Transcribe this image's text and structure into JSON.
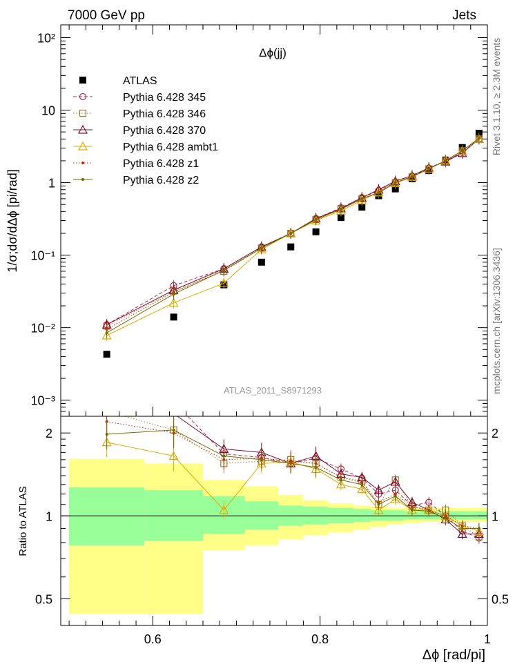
{
  "header": {
    "left": "7000 GeV pp",
    "right": "Jets"
  },
  "side_labels": {
    "rivet": "Rivet 3.1.10, ≥ 2.3M events",
    "mcplots": "mcplots.cern.ch [arXiv:1306.3436]"
  },
  "chart_data": [
    {
      "type": "line",
      "panel": "main",
      "title": "Δϕ(jj)",
      "ylabel": "1/σ;dσ/dΔϕ [pi/rad]",
      "xlabel": "",
      "yscale": "log",
      "xlim": [
        0.49,
        1.0
      ],
      "ylim": [
        0.0006,
        150
      ],
      "ytick_labels": [
        "10⁻³",
        "10⁻²",
        "10⁻¹",
        "1",
        "10",
        "10²"
      ],
      "legend_position": "top-left",
      "watermark": "ATLAS_2011_S8971293",
      "x": [
        0.545,
        0.625,
        0.685,
        0.73,
        0.765,
        0.795,
        0.825,
        0.85,
        0.87,
        0.89,
        0.91,
        0.93,
        0.95,
        0.97,
        0.99
      ],
      "series": [
        {
          "name": "ATLAS",
          "color": "#000000",
          "marker": "square",
          "values": [
            0.0043,
            0.014,
            0.039,
            0.08,
            0.13,
            0.21,
            0.33,
            0.46,
            0.66,
            0.82,
            1.13,
            1.47,
            2.05,
            3.05,
            4.8
          ]
        },
        {
          "name": "Pythia 6.428 345",
          "color": "#b02c4c",
          "marker": "circle-open",
          "line": "dashed",
          "values": [
            0.011,
            0.038,
            0.065,
            0.13,
            0.2,
            0.32,
            0.45,
            0.62,
            0.78,
            1.0,
            1.22,
            1.58,
            2.0,
            2.6,
            4.0
          ]
        },
        {
          "name": "Pythia 6.428 346",
          "color": "#a0782c",
          "marker": "square-open",
          "line": "dotted",
          "values": [
            0.0105,
            0.032,
            0.06,
            0.125,
            0.2,
            0.31,
            0.44,
            0.6,
            0.72,
            1.0,
            1.2,
            1.55,
            2.05,
            2.75,
            4.0
          ]
        },
        {
          "name": "Pythia 6.428 370",
          "color": "#7a1030",
          "marker": "triangle-open",
          "line": "solid",
          "values": [
            0.011,
            0.033,
            0.065,
            0.13,
            0.2,
            0.32,
            0.44,
            0.62,
            0.8,
            1.05,
            1.25,
            1.6,
            1.95,
            2.55,
            4.0
          ]
        },
        {
          "name": "Pythia 6.428 ambt1",
          "color": "#e0a800",
          "marker": "triangle-open",
          "line": "solid",
          "values": [
            0.0078,
            0.022,
            0.041,
            0.12,
            0.2,
            0.3,
            0.41,
            0.57,
            0.74,
            0.98,
            1.2,
            1.55,
            2.0,
            2.75,
            4.0
          ]
        },
        {
          "name": "Pythia 6.428 z1",
          "color": "#d42000",
          "marker": "dot",
          "line": "dotted",
          "values": [
            0.0095,
            0.031,
            0.062,
            0.125,
            0.2,
            0.31,
            0.43,
            0.6,
            0.74,
            1.0,
            1.2,
            1.55,
            2.0,
            2.75,
            4.1
          ]
        },
        {
          "name": "Pythia 6.428 z2",
          "color": "#6e6e00",
          "marker": "dot",
          "line": "solid",
          "values": [
            0.0085,
            0.029,
            0.062,
            0.125,
            0.2,
            0.31,
            0.43,
            0.6,
            0.72,
            1.0,
            1.2,
            1.55,
            2.0,
            2.75,
            4.1
          ]
        }
      ]
    },
    {
      "type": "line",
      "panel": "ratio",
      "ylabel": "Ratio to ATLAS",
      "xlabel": "Δϕ [rad/pi]",
      "yscale": "log",
      "xlim": [
        0.49,
        1.0
      ],
      "ylim": [
        0.4,
        2.3
      ],
      "xtick_labels": [
        "0.6",
        "0.8",
        "1"
      ],
      "ytick_labels": [
        "0.5",
        "1",
        "2"
      ],
      "x": [
        0.545,
        0.625,
        0.685,
        0.73,
        0.765,
        0.795,
        0.825,
        0.85,
        0.87,
        0.89,
        0.91,
        0.93,
        0.95,
        0.97,
        0.99
      ],
      "bin_edges": [
        0.5,
        0.59,
        0.66,
        0.71,
        0.75,
        0.78,
        0.81,
        0.84,
        0.86,
        0.88,
        0.9,
        0.92,
        0.94,
        0.96,
        0.98,
        1.0
      ],
      "uncertainty_bands": {
        "inner": {
          "color": "#99ff99",
          "low": [
            0.78,
            0.81,
            0.86,
            0.89,
            0.92,
            0.93,
            0.94,
            0.95,
            0.96,
            0.96,
            0.97,
            0.97,
            0.97,
            0.97,
            0.97
          ],
          "high": [
            1.27,
            1.24,
            1.18,
            1.13,
            1.09,
            1.08,
            1.07,
            1.06,
            1.05,
            1.05,
            1.04,
            1.04,
            1.04,
            1.04,
            1.04
          ]
        },
        "outer": {
          "color": "#ffff88",
          "low": [
            0.44,
            0.44,
            0.75,
            0.78,
            0.82,
            0.85,
            0.87,
            0.89,
            0.91,
            0.93,
            0.94,
            0.95,
            0.95,
            0.95,
            0.95
          ],
          "high": [
            1.61,
            1.55,
            1.35,
            1.28,
            1.19,
            1.14,
            1.11,
            1.09,
            1.08,
            1.07,
            1.07,
            1.07,
            1.07,
            1.07,
            1.07
          ]
        }
      },
      "series": [
        {
          "name": "Pythia 6.428 345",
          "color": "#b02c4c",
          "values": [
            2.42,
            2.6,
            1.68,
            1.63,
            1.55,
            1.62,
            1.48,
            1.37,
            1.2,
            1.24,
            1.09,
            1.12,
            1.0,
            0.88,
            0.83
          ]
        },
        {
          "name": "Pythia 6.428 346",
          "color": "#a0782c",
          "values": [
            2.4,
            2.05,
            1.55,
            1.58,
            1.6,
            1.55,
            1.38,
            1.34,
            1.1,
            1.35,
            1.08,
            1.05,
            1.05,
            0.92,
            0.84
          ]
        },
        {
          "name": "Pythia 6.428 370",
          "color": "#7a1030",
          "values": [
            2.42,
            2.35,
            1.75,
            1.7,
            1.55,
            1.65,
            1.42,
            1.38,
            1.24,
            1.33,
            1.12,
            1.05,
            0.97,
            0.86,
            0.86
          ]
        },
        {
          "name": "Pythia 6.428 ambt1",
          "color": "#e0a800",
          "values": [
            1.85,
            1.65,
            1.05,
            1.55,
            1.57,
            1.48,
            1.3,
            1.25,
            1.05,
            1.15,
            1.05,
            1.05,
            1.0,
            0.92,
            0.88
          ]
        },
        {
          "name": "Pythia 6.428 z1",
          "color": "#d42000",
          "values": [
            2.2,
            2.0,
            1.6,
            1.62,
            1.58,
            1.55,
            1.38,
            1.32,
            1.12,
            1.2,
            1.08,
            1.05,
            1.0,
            0.92,
            0.9
          ]
        },
        {
          "name": "Pythia 6.428 z2",
          "color": "#6e6e00",
          "values": [
            1.98,
            2.05,
            1.65,
            1.6,
            1.55,
            1.5,
            1.35,
            1.3,
            1.1,
            1.18,
            1.05,
            1.04,
            0.98,
            0.9,
            0.9
          ]
        }
      ]
    }
  ]
}
